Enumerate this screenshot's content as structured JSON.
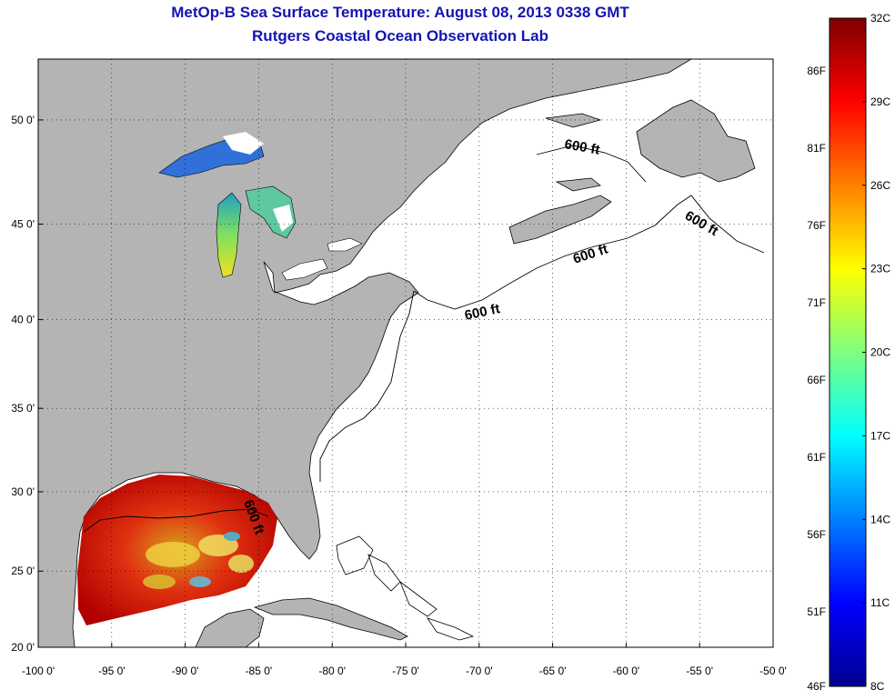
{
  "title": "MetOp-B Sea Surface Temperature:  August 08, 2013 0338 GMT",
  "subtitle": "Rutgers Coastal Ocean Observation Lab",
  "map": {
    "x_ticks": [
      "-100 0'",
      "-95 0'",
      "-90 0'",
      "-85 0'",
      "-80 0'",
      "-75 0'",
      "-70 0'",
      "-65 0'",
      "-60 0'",
      "-55 0'",
      "-50 0'"
    ],
    "y_ticks": [
      "50 0'",
      "45 0'",
      "40 0'",
      "35 0'",
      "30 0'",
      "25 0'",
      "20 0'"
    ],
    "grid": "dotted",
    "land_color": "#b4b4b4",
    "ocean_color": "#ffffff",
    "isobath_labels": [
      "600 ft",
      "600 ft",
      "600 ft",
      "600 ft",
      "600 ft"
    ]
  },
  "colorbar": {
    "celsius_labels": [
      "32C",
      "29C",
      "26C",
      "23C",
      "20C",
      "17C",
      "14C",
      "11C",
      "8C"
    ],
    "fahrenheit_labels": [
      "86F",
      "81F",
      "76F",
      "71F",
      "66F",
      "61F",
      "56F",
      "51F",
      "46F"
    ],
    "colors": [
      "#7f0000",
      "#ff0000",
      "#ff7f00",
      "#ffff00",
      "#7fff7f",
      "#00ffff",
      "#007fff",
      "#0000ff",
      "#00008f"
    ]
  }
}
